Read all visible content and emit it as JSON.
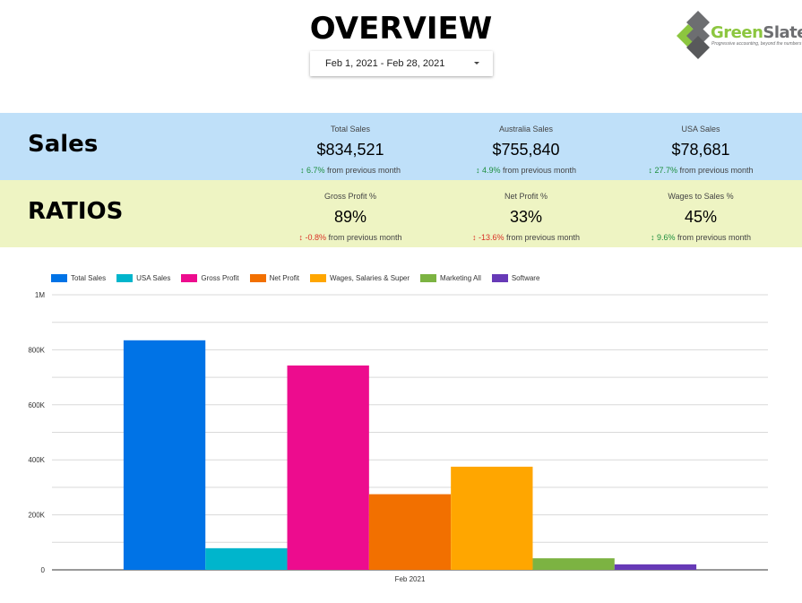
{
  "header": {
    "title": "OVERVIEW",
    "date_range": "Feb 1, 2021 - Feb 28, 2021",
    "logo": {
      "green_text": "Green",
      "gray_text": "Slate",
      "tagline": "Progressive accounting, beyond the numbers"
    }
  },
  "sales": {
    "label": "Sales",
    "kpis": [
      {
        "label": "Total Sales",
        "value": "$834,521",
        "delta": "6.7%",
        "direction": "up",
        "suffix": "from previous month"
      },
      {
        "label": "Australia Sales",
        "value": "$755,840",
        "delta": "4.9%",
        "direction": "up",
        "suffix": "from previous month"
      },
      {
        "label": "USA Sales",
        "value": "$78,681",
        "delta": "27.7%",
        "direction": "up",
        "suffix": "from previous month"
      }
    ]
  },
  "ratios": {
    "label": "RATIOS",
    "kpis": [
      {
        "label": "Gross Profit %",
        "value": "89%",
        "delta": "-0.8%",
        "direction": "down",
        "suffix": "from previous month"
      },
      {
        "label": "Net Profit %",
        "value": "33%",
        "delta": "-13.6%",
        "direction": "down",
        "suffix": "from previous month"
      },
      {
        "label": "Wages to Sales %",
        "value": "45%",
        "delta": "9.6%",
        "direction": "up",
        "suffix": "from previous month"
      }
    ]
  },
  "colors": {
    "sales_band": "#bfe0f9",
    "ratios_band": "#eef4c3",
    "up": "#1e8e3e",
    "down": "#d93025"
  },
  "chart_data": {
    "type": "bar",
    "categories": [
      "Feb 2021"
    ],
    "series": [
      {
        "name": "Total Sales",
        "values": [
          834521
        ],
        "color": "#0073e6"
      },
      {
        "name": "USA Sales",
        "values": [
          78681
        ],
        "color": "#00b5cc"
      },
      {
        "name": "Gross Profit",
        "values": [
          743000
        ],
        "color": "#ed0c8e"
      },
      {
        "name": "Net Profit",
        "values": [
          275000
        ],
        "color": "#f27000"
      },
      {
        "name": "Wages, Salaries & Super",
        "values": [
          375000
        ],
        "color": "#ffa600"
      },
      {
        "name": "Marketing All",
        "values": [
          42000
        ],
        "color": "#7cb342"
      },
      {
        "name": "Software",
        "values": [
          20000
        ],
        "color": "#673ab7"
      }
    ],
    "ylim": [
      0,
      1000000
    ],
    "yticks": [
      {
        "value": 0,
        "label": "0"
      },
      {
        "value": 200000,
        "label": "200K"
      },
      {
        "value": 400000,
        "label": "400K"
      },
      {
        "value": 600000,
        "label": "600K"
      },
      {
        "value": 800000,
        "label": "800K"
      },
      {
        "value": 1000000,
        "label": "1M"
      }
    ],
    "gridline_step": 100000,
    "legend_position": "top-left",
    "grid": true
  }
}
